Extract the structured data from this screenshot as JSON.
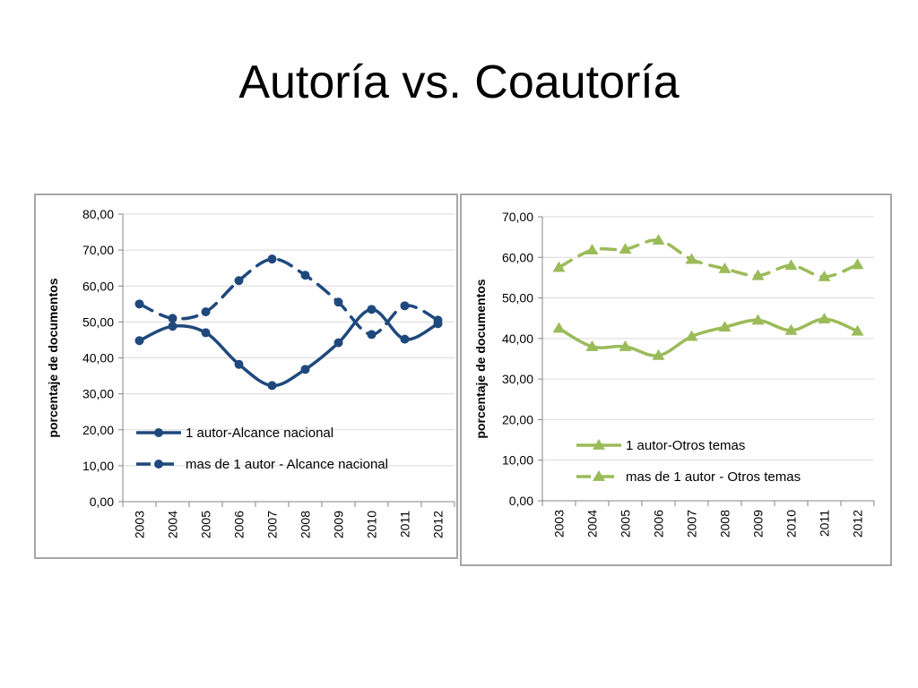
{
  "slide": {
    "title": "Autoría vs. Coautoría"
  },
  "chart_data": [
    {
      "type": "line",
      "ylabel": "porcentaje de documentos",
      "xlabel": "",
      "categories": [
        "2003",
        "2004",
        "2005",
        "2006",
        "2007",
        "2008",
        "2009",
        "2010",
        "2011",
        "2012"
      ],
      "ylim": [
        0,
        80
      ],
      "yticks": [
        "0,00",
        "10,00",
        "20,00",
        "30,00",
        "40,00",
        "50,00",
        "60,00",
        "70,00",
        "80,00"
      ],
      "grid": true,
      "legend_position": "bottom-left (inside plot)",
      "series": [
        {
          "name": "1 autor-Alcance nacional",
          "color": "#1f497d",
          "dash": false,
          "marker": "circle",
          "values": [
            44.8,
            48.8,
            47.0,
            38.2,
            32.3,
            36.8,
            44.2,
            53.5,
            45.2,
            49.5
          ]
        },
        {
          "name": "mas de 1 autor - Alcance nacional",
          "color": "#1f497d",
          "dash": true,
          "marker": "circle",
          "values": [
            55.0,
            51.0,
            52.8,
            61.5,
            67.5,
            63.0,
            55.5,
            46.5,
            54.5,
            50.5
          ]
        }
      ]
    },
    {
      "type": "line",
      "ylabel": "porcentaje de documentos",
      "xlabel": "",
      "categories": [
        "2003",
        "2004",
        "2005",
        "2006",
        "2007",
        "2008",
        "2009",
        "2010",
        "2011",
        "2012"
      ],
      "ylim": [
        0,
        70
      ],
      "yticks": [
        "0,00",
        "10,00",
        "20,00",
        "30,00",
        "40,00",
        "50,00",
        "60,00",
        "70,00"
      ],
      "grid": true,
      "legend_position": "bottom-left (inside plot)",
      "series": [
        {
          "name": "1 autor-Otros temas",
          "color": "#9bbb59",
          "dash": false,
          "marker": "triangle",
          "values": [
            42.5,
            38.0,
            38.0,
            35.8,
            40.5,
            42.8,
            44.5,
            42.0,
            44.8,
            41.8
          ]
        },
        {
          "name": "mas de 1 autor - Otros temas",
          "color": "#9bbb59",
          "dash": true,
          "marker": "triangle",
          "values": [
            57.5,
            61.8,
            62.0,
            64.2,
            59.5,
            57.2,
            55.5,
            58.0,
            55.2,
            58.2
          ]
        }
      ]
    }
  ]
}
